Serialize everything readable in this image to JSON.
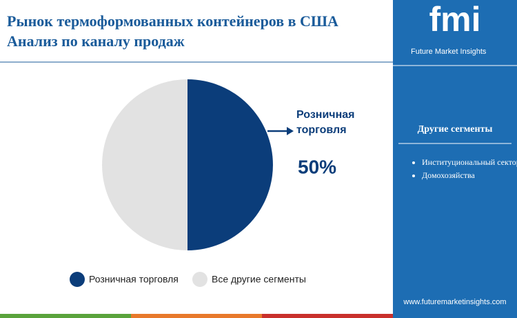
{
  "chart_data": {
    "type": "pie",
    "title": "Рынок термоформованных контейнеров в США",
    "subtitle": "Анализ по каналу продаж",
    "categories": [
      "Розничная торговля",
      "Все другие сегменты"
    ],
    "values": [
      50,
      50
    ],
    "value_labels": [
      "50%",
      null
    ],
    "colors": [
      "#0b3d7a",
      "#e2e2e2"
    ]
  },
  "sidebar": {
    "logo": "fmi",
    "brand": "Future Market Insights",
    "heading": "Другие сегменты",
    "items": [
      "Институциональный сектор",
      "Домохозяйства"
    ],
    "website": "www.futuremarketinsights.com"
  }
}
